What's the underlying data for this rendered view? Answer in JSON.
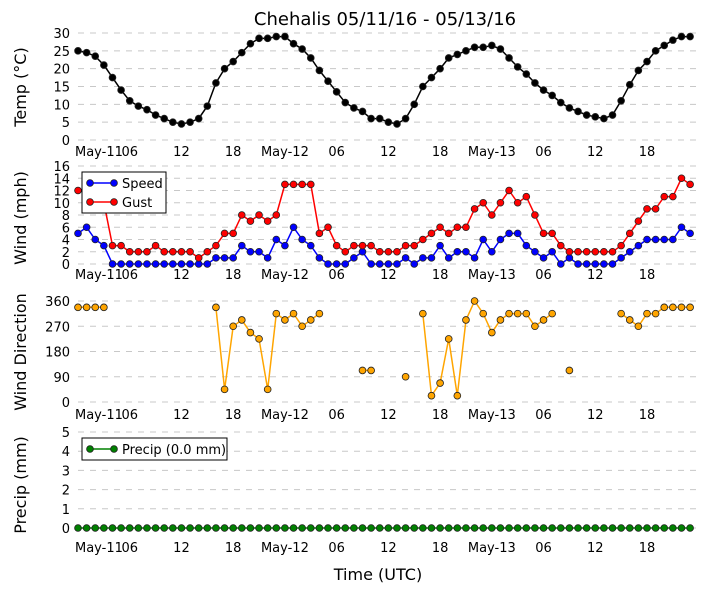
{
  "chart_data": {
    "type": "line",
    "title": "Chehalis 05/11/16 - 05/13/16",
    "xlabel": "Time (UTC)",
    "x_unit": "hours since May-11 00:00 UTC",
    "x_tick_labels": [
      "May-11",
      "06",
      "12",
      "18",
      "May-12",
      "06",
      "12",
      "18",
      "May-13",
      "06",
      "12",
      "18"
    ],
    "x_tick_hours": [
      0,
      6,
      12,
      18,
      24,
      30,
      36,
      42,
      48,
      54,
      60,
      66
    ],
    "xlim": [
      0,
      71
    ],
    "panels": [
      {
        "ylabel": "Temp (°C)",
        "ylim": [
          0,
          30
        ],
        "yticks": [
          0,
          5,
          10,
          15,
          20,
          25,
          30
        ],
        "legend": null,
        "series": [
          {
            "name": "Temp",
            "color": "#000000",
            "values": [
              25,
              24.5,
              23.5,
              21,
              17.5,
              14,
              11,
              9.5,
              8.5,
              7,
              6,
              5,
              4.5,
              5,
              6,
              9.5,
              16,
              20,
              22,
              24.5,
              27,
              28.5,
              28.5,
              29,
              29,
              27,
              25.5,
              23,
              19.5,
              16.5,
              13.5,
              10.5,
              9,
              8,
              6,
              6,
              5,
              4.5,
              6,
              10,
              15,
              17.5,
              20,
              23,
              24,
              25,
              26,
              26,
              26.5,
              25.5,
              23,
              20.5,
              18.5,
              16,
              14,
              12.5,
              10.5,
              9,
              8,
              7,
              6.5,
              6,
              7,
              11,
              15.5,
              19.5,
              22,
              25,
              26.5,
              28,
              29,
              29
            ]
          }
        ]
      },
      {
        "ylabel": "Wind (mph)",
        "ylim": [
          0,
          16
        ],
        "yticks": [
          0,
          2,
          4,
          6,
          8,
          10,
          12,
          14,
          16
        ],
        "legend": "top-left",
        "series": [
          {
            "name": "Speed",
            "color": "#0000ff",
            "values": [
              5,
              6,
              4,
              3,
              0,
              0,
              0,
              0,
              0,
              0,
              0,
              0,
              0,
              0,
              0,
              0,
              1,
              1,
              1,
              3,
              2,
              2,
              1,
              4,
              3,
              6,
              4,
              3,
              1,
              0,
              0,
              0,
              1,
              2,
              0,
              0,
              0,
              0,
              1,
              0,
              1,
              1,
              3,
              1,
              2,
              2,
              1,
              4,
              2,
              4,
              5,
              5,
              3,
              2,
              1,
              2,
              0,
              1,
              0,
              0,
              0,
              0,
              0,
              1,
              2,
              3,
              4,
              4,
              4,
              4,
              6,
              5
            ]
          },
          {
            "name": "Gust",
            "color": "#ff0000",
            "values": [
              12,
              12,
              11,
              10,
              3,
              3,
              2,
              2,
              2,
              3,
              2,
              2,
              2,
              2,
              1,
              2,
              3,
              5,
              5,
              8,
              7,
              8,
              7,
              8,
              13,
              13,
              13,
              13,
              5,
              6,
              3,
              2,
              3,
              3,
              3,
              2,
              2,
              2,
              3,
              3,
              4,
              5,
              6,
              5,
              6,
              6,
              9,
              10,
              8,
              10,
              12,
              10,
              11,
              8,
              5,
              5,
              3,
              2,
              2,
              2,
              2,
              2,
              2,
              3,
              5,
              7,
              9,
              9,
              11,
              11,
              14,
              13
            ]
          }
        ]
      },
      {
        "ylabel": "Wind Direction",
        "ylim": [
          0,
          360
        ],
        "yticks": [
          0,
          90,
          180,
          270,
          360
        ],
        "legend": null,
        "series": [
          {
            "name": "Direction",
            "color": "#ffa500",
            "values": [
              337.5,
              337.5,
              337.5,
              337.5,
              null,
              null,
              null,
              null,
              null,
              null,
              null,
              null,
              null,
              null,
              null,
              null,
              337.5,
              45,
              270,
              292.5,
              247.5,
              225,
              45,
              315,
              292.5,
              315,
              270,
              292.5,
              315,
              null,
              null,
              null,
              null,
              112.5,
              112.5,
              null,
              null,
              null,
              90,
              null,
              315,
              22.5,
              67.5,
              225,
              22.5,
              292.5,
              360,
              315,
              247.5,
              292.5,
              315,
              315,
              315,
              270,
              292.5,
              315,
              null,
              112.5,
              null,
              null,
              null,
              null,
              null,
              315,
              292.5,
              270,
              315,
              315,
              337.5,
              337.5,
              337.5,
              337.5
            ]
          }
        ]
      },
      {
        "ylabel": "Precip (mm)",
        "ylim": [
          0,
          5
        ],
        "yticks": [
          0,
          1,
          2,
          3,
          4,
          5
        ],
        "legend": "top-left",
        "series": [
          {
            "name": "Precip (0.0 mm)",
            "color": "#008000",
            "values": [
              0,
              0,
              0,
              0,
              0,
              0,
              0,
              0,
              0,
              0,
              0,
              0,
              0,
              0,
              0,
              0,
              0,
              0,
              0,
              0,
              0,
              0,
              0,
              0,
              0,
              0,
              0,
              0,
              0,
              0,
              0,
              0,
              0,
              0,
              0,
              0,
              0,
              0,
              0,
              0,
              0,
              0,
              0,
              0,
              0,
              0,
              0,
              0,
              0,
              0,
              0,
              0,
              0,
              0,
              0,
              0,
              0,
              0,
              0,
              0,
              0,
              0,
              0,
              0,
              0,
              0,
              0,
              0,
              0,
              0,
              0,
              0
            ]
          }
        ]
      }
    ]
  }
}
